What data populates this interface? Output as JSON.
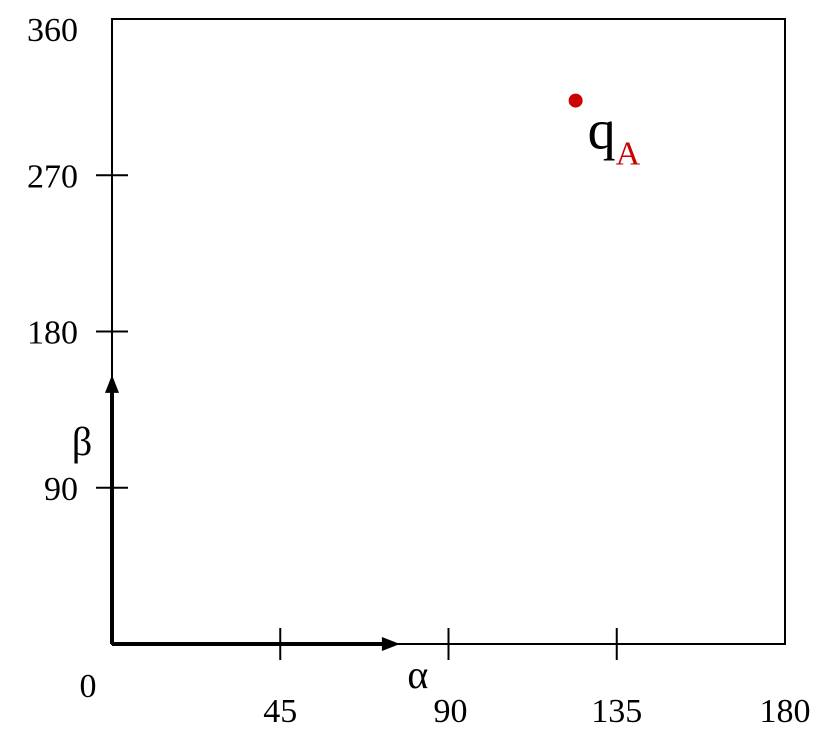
{
  "chart_data": {
    "type": "scatter",
    "xlim": [
      0,
      180
    ],
    "ylim": [
      0,
      360
    ],
    "x_ticks": [
      {
        "value": 0,
        "label": "0"
      },
      {
        "value": 45,
        "label": "45"
      },
      {
        "value": 90,
        "label": "90"
      },
      {
        "value": 135,
        "label": "135"
      },
      {
        "value": 180,
        "label": "180"
      }
    ],
    "y_ticks": [
      {
        "value": 90,
        "label": "90"
      },
      {
        "value": 180,
        "label": "180"
      },
      {
        "value": 270,
        "label": "270"
      },
      {
        "value": 360,
        "label": "360"
      }
    ],
    "x_symbol": "α",
    "y_symbol": "β",
    "x_arrow_to": 77,
    "y_arrow_to": 155,
    "grid": false,
    "points": [
      {
        "x": 124,
        "y": 313,
        "label": "q",
        "label_sub": "A",
        "color": "#cc0000"
      }
    ],
    "colors": {
      "axis": "#000000",
      "point": "#cc0000",
      "label_sub": "#cc0000"
    }
  }
}
